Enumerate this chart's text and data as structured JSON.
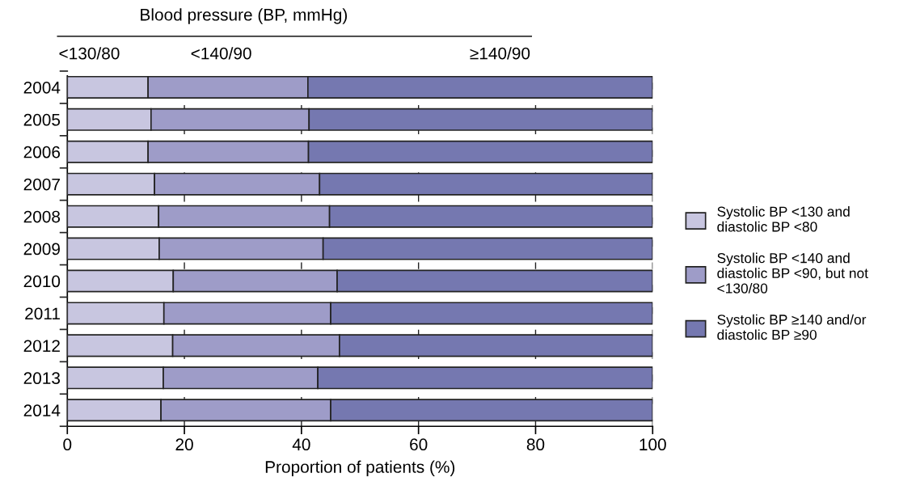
{
  "chart_data": {
    "type": "bar",
    "orientation": "horizontal",
    "stacked": true,
    "title": "Blood pressure (BP, mmHg)",
    "annotations": [
      "<130/80",
      "<140/90",
      "≥140/90"
    ],
    "xlabel": "Proportion of patients (%)",
    "categories": [
      "2004",
      "2005",
      "2006",
      "2007",
      "2008",
      "2009",
      "2010",
      "2011",
      "2012",
      "2013",
      "2014"
    ],
    "series": [
      {
        "name": "Systolic BP <130 and diastolic BP <80",
        "color": "#c8c6e0",
        "values": [
          13.8,
          14.3,
          13.8,
          14.9,
          15.6,
          15.7,
          18.1,
          16.5,
          18.0,
          16.4,
          16.0
        ]
      },
      {
        "name": "Systolic BP <140 and diastolic BP <90, but not <130/80",
        "color": "#9e9cc8",
        "values": [
          27.3,
          27.0,
          27.4,
          28.2,
          29.2,
          28.0,
          28.0,
          28.5,
          28.5,
          26.4,
          29.0
        ]
      },
      {
        "name": "Systolic BP ≥140 and/or diastolic BP ≥90",
        "color": "#7578b0",
        "values": [
          58.9,
          58.7,
          58.8,
          56.9,
          55.2,
          56.3,
          53.9,
          55.0,
          53.5,
          57.2,
          55.0
        ]
      }
    ],
    "xlim": [
      0,
      100
    ],
    "xticks": [
      0,
      20,
      40,
      60,
      80,
      100
    ],
    "grid": "x",
    "legend": "right"
  }
}
